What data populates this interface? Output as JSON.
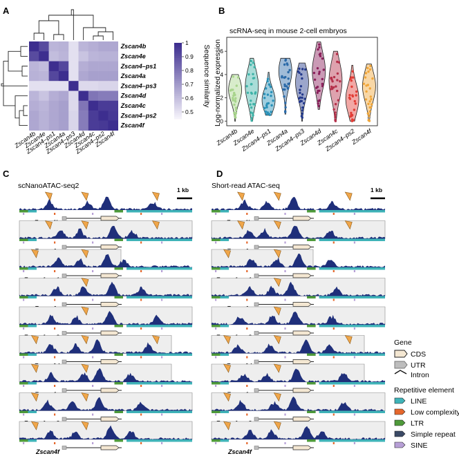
{
  "panel_labels": {
    "a": "A",
    "b": "B",
    "c": "C",
    "d": "D"
  },
  "genes": [
    "Zscan4b",
    "Zscan4e",
    "Zscan4–ps1",
    "Zscan4a",
    "Zscan4–ps3",
    "Zscan4d",
    "Zscan4c",
    "Zscan4–ps2",
    "Zscan4f"
  ],
  "heatmap": {
    "colorbar_label": "Sequence similarity",
    "colorbar_ticks": [
      "1",
      "0.9",
      "0.8",
      "0.7",
      "0.6",
      "0.5"
    ],
    "colors": {
      "high": "#3d2e8f",
      "low": "#f4f2fa"
    }
  },
  "violin": {
    "title": "scRNA-seq in mouse 2-cell embryos",
    "ylabel": "Log-normalized expression",
    "yticks": [
      "0",
      "2",
      "4",
      "6"
    ]
  },
  "atac": {
    "c_title": "scNanoATAC-seq2",
    "d_title": "Short-read ATAC-seq",
    "scale_label": "1 kb",
    "track_color": "#1f2f7a",
    "arrow_color": "#f0a64a"
  },
  "legend": {
    "gene_title": "Gene",
    "cds": "CDS",
    "utr": "UTR",
    "intron": "Intron",
    "rep_title": "Repetitive element",
    "line": "LINE",
    "lowc": "Low complexity",
    "ltr": "LTR",
    "simple": "Simple repeat",
    "sine": "SINE",
    "colors": {
      "line": "#3fb3b8",
      "lowc": "#e5672c",
      "ltr": "#4e9a3a",
      "simple": "#3b4a66",
      "sine": "#b79fd6",
      "cds": "#f4e7d2",
      "utr": "#bdbdbd"
    }
  },
  "chart_data": [
    {
      "type": "heatmap",
      "rows": [
        "Zscan4b",
        "Zscan4e",
        "Zscan4–ps1",
        "Zscan4a",
        "Zscan4–ps3",
        "Zscan4d",
        "Zscan4c",
        "Zscan4–ps2",
        "Zscan4f"
      ],
      "cols": [
        "Zscan4b",
        "Zscan4e",
        "Zscan4–ps1",
        "Zscan4a",
        "Zscan4–ps3",
        "Zscan4d",
        "Zscan4c",
        "Zscan4–ps2",
        "Zscan4f"
      ],
      "values": [
        [
          1.0,
          0.92,
          0.62,
          0.63,
          0.5,
          0.62,
          0.64,
          0.66,
          0.66
        ],
        [
          0.92,
          1.0,
          0.6,
          0.62,
          0.5,
          0.58,
          0.62,
          0.63,
          0.63
        ],
        [
          0.62,
          0.6,
          1.0,
          0.93,
          0.5,
          0.64,
          0.66,
          0.66,
          0.66
        ],
        [
          0.63,
          0.62,
          0.93,
          1.0,
          0.5,
          0.66,
          0.68,
          0.68,
          0.68
        ],
        [
          0.5,
          0.5,
          0.5,
          0.5,
          1.0,
          0.52,
          0.52,
          0.53,
          0.53
        ],
        [
          0.62,
          0.58,
          0.64,
          0.66,
          0.52,
          1.0,
          0.8,
          0.78,
          0.78
        ],
        [
          0.64,
          0.62,
          0.66,
          0.68,
          0.52,
          0.8,
          1.0,
          0.96,
          0.96
        ],
        [
          0.66,
          0.63,
          0.66,
          0.68,
          0.53,
          0.78,
          0.96,
          1.0,
          0.97
        ],
        [
          0.66,
          0.63,
          0.66,
          0.68,
          0.53,
          0.78,
          0.96,
          0.97,
          1.0
        ]
      ],
      "vlim": [
        0.45,
        1.0
      ]
    },
    {
      "type": "violin",
      "title": "scRNA-seq in mouse 2-cell embryos",
      "ylabel": "Log-normalized expression",
      "ylim": [
        -0.4,
        7.2
      ],
      "categories": [
        "Zscan4b",
        "Zscan4e",
        "Zscan4–ps1",
        "Zscan4a",
        "Zscan4–ps3",
        "Zscan4d",
        "Zscan4c",
        "Zscan4–ps2",
        "Zscan4f"
      ],
      "series": [
        {
          "color": "#a8d48c",
          "min": 0.0,
          "max": 4.0,
          "median": 2.7
        },
        {
          "color": "#3fb3a8",
          "min": 0.0,
          "max": 5.4,
          "median": 3.0
        },
        {
          "color": "#2a91b8",
          "min": 0.5,
          "max": 4.2,
          "median": 1.8
        },
        {
          "color": "#2b6aa8",
          "min": 0.6,
          "max": 5.4,
          "median": 4.3
        },
        {
          "color": "#243a8c",
          "min": 0.0,
          "max": 5.0,
          "median": 3.3
        },
        {
          "color": "#8a1f5a",
          "min": 1.0,
          "max": 6.8,
          "median": 4.3
        },
        {
          "color": "#b5304a",
          "min": 0.0,
          "max": 6.0,
          "median": 3.5
        },
        {
          "color": "#e23d36",
          "min": 0.0,
          "max": 4.8,
          "median": 1.9
        },
        {
          "color": "#f0a63a",
          "min": 0.0,
          "max": 4.9,
          "median": 3.0
        }
      ]
    }
  ]
}
